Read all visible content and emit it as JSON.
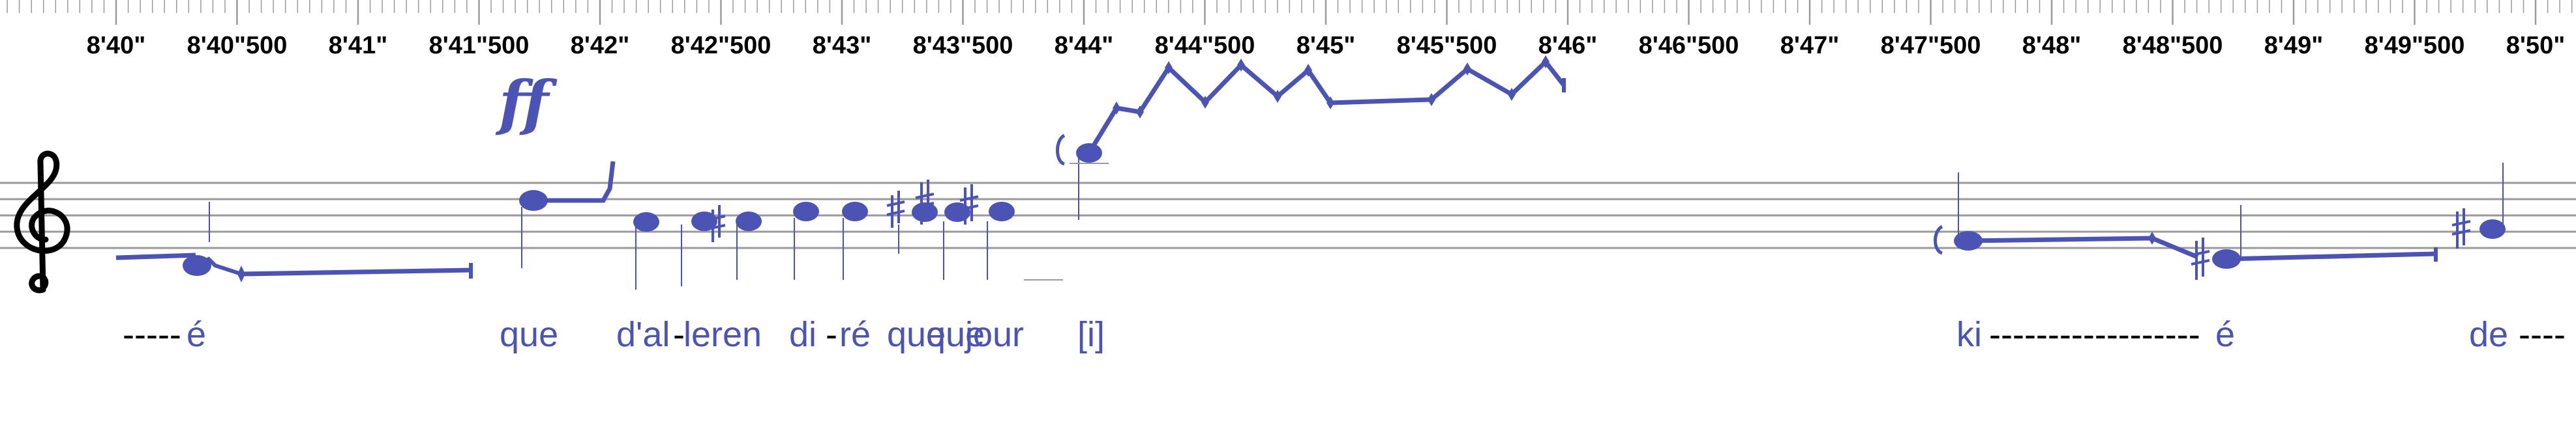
{
  "colors": {
    "notation": "#4B54B5",
    "staff": "#9a9a9a",
    "text": "#000000",
    "background": "#ffffff"
  },
  "timeline": {
    "labels": [
      "8'40\"",
      "8'40\"500",
      "8'41\"",
      "8'41\"500",
      "8'42\"",
      "8'42\"500",
      "8'43\"",
      "8'43\"500",
      "8'44\"",
      "8'44\"500",
      "8'45\"",
      "8'45\"500",
      "8'46\"",
      "8'46\"500",
      "8'47\"",
      "8'47\"500",
      "8'48\"",
      "8'48\"500",
      "8'49\"",
      "8'49\"500",
      "8'50\""
    ]
  },
  "staff": {
    "clef": "treble-clef-icon",
    "dynamic": "ff"
  },
  "lyrics": [
    {
      "text": "-----é",
      "prefix": "-----",
      "syllable": "é"
    },
    {
      "text": "que",
      "prefix": "",
      "syllable": "que"
    },
    {
      "text": "d'al",
      "prefix": "",
      "syllable": "d'al"
    },
    {
      "text": "-",
      "prefix": "",
      "syllable": "-"
    },
    {
      "text": "leren",
      "prefix": "",
      "syllable": "leren"
    },
    {
      "text": "di",
      "prefix": "",
      "syllable": "di"
    },
    {
      "text": "-",
      "prefix": "",
      "syllable": "-"
    },
    {
      "text": "ré",
      "prefix": "",
      "syllable": "ré"
    },
    {
      "text": "que",
      "prefix": "",
      "syllable": "que"
    },
    {
      "text": "que",
      "prefix": "",
      "syllable": "que"
    },
    {
      "text": "jour",
      "prefix": "",
      "syllable": "jour"
    },
    {
      "text": "[i]",
      "prefix": "",
      "syllable": "[i]"
    },
    {
      "text": "ki",
      "prefix": "",
      "syllable": "ki"
    },
    {
      "text": "------------------é",
      "prefix": "------------------",
      "syllable": "é"
    },
    {
      "text": "de----",
      "prefix": "",
      "syllable": "de"
    }
  ]
}
